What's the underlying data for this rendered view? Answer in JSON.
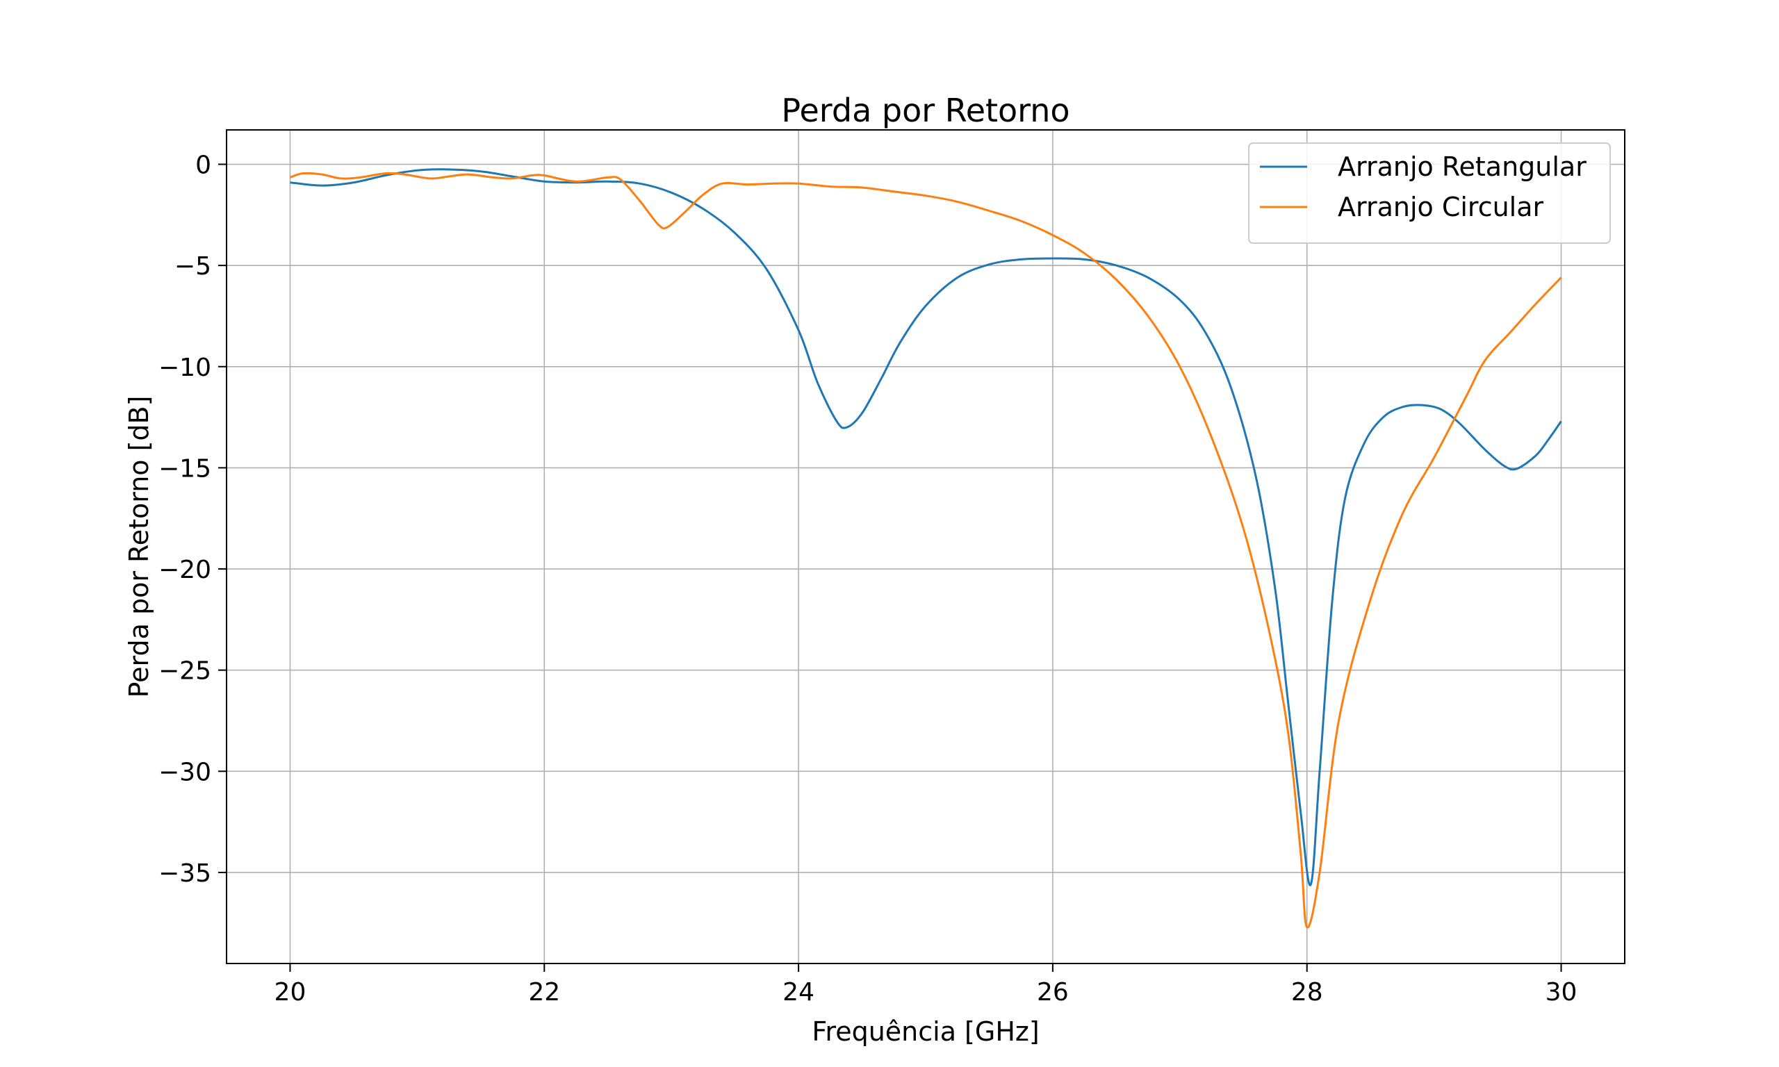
{
  "chart_data": {
    "type": "line",
    "title": "Perda por Retorno",
    "xlabel": "Frequência [GHz]",
    "ylabel": "Perda por Retorno [dB]",
    "xlim": [
      19.5,
      30.5
    ],
    "ylim": [
      -39.5,
      1.7
    ],
    "xticks": [
      20,
      22,
      24,
      26,
      28,
      30
    ],
    "yticks": [
      0,
      -5,
      -10,
      -15,
      -20,
      -25,
      -30,
      -35
    ],
    "xtick_labels": [
      "20",
      "22",
      "24",
      "26",
      "28",
      "30"
    ],
    "ytick_labels": [
      "0",
      "−5",
      "−10",
      "−15",
      "−20",
      "−25",
      "−30",
      "−35"
    ],
    "grid": true,
    "legend_position": "top-right",
    "series": [
      {
        "name": "Arranjo Retangular",
        "color": "#1f77b4",
        "points": [
          [
            20.0,
            -0.9
          ],
          [
            20.25,
            -1.05
          ],
          [
            20.5,
            -0.9
          ],
          [
            20.75,
            -0.55
          ],
          [
            21.0,
            -0.3
          ],
          [
            21.2,
            -0.25
          ],
          [
            21.5,
            -0.35
          ],
          [
            21.75,
            -0.6
          ],
          [
            22.0,
            -0.85
          ],
          [
            22.25,
            -0.9
          ],
          [
            22.5,
            -0.85
          ],
          [
            22.75,
            -0.95
          ],
          [
            23.0,
            -1.4
          ],
          [
            23.25,
            -2.2
          ],
          [
            23.5,
            -3.4
          ],
          [
            23.75,
            -5.2
          ],
          [
            24.0,
            -8.2
          ],
          [
            24.15,
            -10.8
          ],
          [
            24.3,
            -12.7
          ],
          [
            24.38,
            -13.0
          ],
          [
            24.5,
            -12.3
          ],
          [
            24.65,
            -10.6
          ],
          [
            24.8,
            -8.8
          ],
          [
            25.0,
            -7.0
          ],
          [
            25.25,
            -5.6
          ],
          [
            25.5,
            -4.95
          ],
          [
            25.75,
            -4.7
          ],
          [
            26.0,
            -4.65
          ],
          [
            26.25,
            -4.7
          ],
          [
            26.5,
            -5.0
          ],
          [
            26.75,
            -5.6
          ],
          [
            27.0,
            -6.7
          ],
          [
            27.2,
            -8.3
          ],
          [
            27.4,
            -11.0
          ],
          [
            27.6,
            -15.5
          ],
          [
            27.75,
            -21.0
          ],
          [
            27.85,
            -26.5
          ],
          [
            27.95,
            -32.0
          ],
          [
            28.03,
            -35.6
          ],
          [
            28.1,
            -30.0
          ],
          [
            28.2,
            -21.5
          ],
          [
            28.3,
            -16.5
          ],
          [
            28.45,
            -13.8
          ],
          [
            28.6,
            -12.5
          ],
          [
            28.75,
            -12.0
          ],
          [
            28.9,
            -11.9
          ],
          [
            29.05,
            -12.1
          ],
          [
            29.2,
            -12.8
          ],
          [
            29.4,
            -14.1
          ],
          [
            29.55,
            -14.9
          ],
          [
            29.65,
            -15.05
          ],
          [
            29.8,
            -14.4
          ],
          [
            29.9,
            -13.6
          ],
          [
            30.0,
            -12.7
          ]
        ]
      },
      {
        "name": "Arranjo Circular",
        "color": "#ff7f0e",
        "points": [
          [
            20.0,
            -0.65
          ],
          [
            20.1,
            -0.45
          ],
          [
            20.25,
            -0.5
          ],
          [
            20.4,
            -0.7
          ],
          [
            20.55,
            -0.65
          ],
          [
            20.75,
            -0.45
          ],
          [
            20.9,
            -0.5
          ],
          [
            21.1,
            -0.7
          ],
          [
            21.25,
            -0.6
          ],
          [
            21.4,
            -0.5
          ],
          [
            21.6,
            -0.65
          ],
          [
            21.75,
            -0.7
          ],
          [
            21.9,
            -0.55
          ],
          [
            22.0,
            -0.55
          ],
          [
            22.25,
            -0.85
          ],
          [
            22.5,
            -0.65
          ],
          [
            22.6,
            -0.75
          ],
          [
            22.75,
            -1.8
          ],
          [
            22.9,
            -3.0
          ],
          [
            22.97,
            -3.1
          ],
          [
            23.1,
            -2.4
          ],
          [
            23.25,
            -1.5
          ],
          [
            23.4,
            -0.95
          ],
          [
            23.6,
            -1.0
          ],
          [
            23.8,
            -0.95
          ],
          [
            24.0,
            -0.95
          ],
          [
            24.25,
            -1.1
          ],
          [
            24.5,
            -1.15
          ],
          [
            24.75,
            -1.35
          ],
          [
            25.0,
            -1.55
          ],
          [
            25.25,
            -1.85
          ],
          [
            25.5,
            -2.3
          ],
          [
            25.75,
            -2.8
          ],
          [
            26.0,
            -3.5
          ],
          [
            26.25,
            -4.4
          ],
          [
            26.5,
            -5.7
          ],
          [
            26.75,
            -7.5
          ],
          [
            27.0,
            -10.0
          ],
          [
            27.25,
            -13.5
          ],
          [
            27.5,
            -18.0
          ],
          [
            27.7,
            -23.0
          ],
          [
            27.85,
            -28.0
          ],
          [
            27.95,
            -34.0
          ],
          [
            28.0,
            -37.7
          ],
          [
            28.1,
            -35.0
          ],
          [
            28.25,
            -27.5
          ],
          [
            28.5,
            -21.5
          ],
          [
            28.75,
            -17.3
          ],
          [
            29.0,
            -14.5
          ],
          [
            29.25,
            -11.5
          ],
          [
            29.4,
            -9.7
          ],
          [
            29.6,
            -8.3
          ],
          [
            29.8,
            -6.9
          ],
          [
            30.0,
            -5.6
          ]
        ]
      }
    ]
  }
}
